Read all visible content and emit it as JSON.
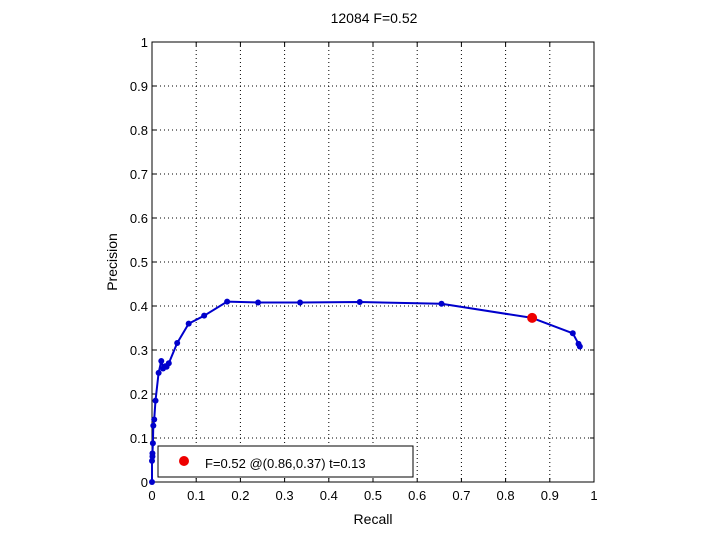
{
  "chart_data": {
    "type": "line",
    "title": "12084 F=0.52",
    "xlabel": "Recall",
    "ylabel": "Precision",
    "xlim": [
      0,
      1
    ],
    "ylim": [
      0,
      1
    ],
    "xticks": [
      "0",
      "0.1",
      "0.2",
      "0.3",
      "0.4",
      "0.5",
      "0.6",
      "0.7",
      "0.8",
      "0.9",
      "1"
    ],
    "yticks": [
      "0",
      "0.1",
      "0.2",
      "0.3",
      "0.4",
      "0.5",
      "0.6",
      "0.7",
      "0.8",
      "0.9",
      "1"
    ],
    "grid": true,
    "legend_position": "bottom-left",
    "series": [
      {
        "color": "#0000cc",
        "marker": "dot",
        "x": [
          0.968,
          0.965,
          0.952,
          0.86,
          0.655,
          0.47,
          0.335,
          0.24,
          0.17,
          0.118,
          0.083,
          0.057,
          0.038,
          0.033,
          0.03,
          0.025,
          0.021,
          0.015,
          0.008,
          0.005,
          0.003,
          0.002,
          0.001,
          0.001,
          0.0,
          0.0
        ],
        "y": [
          0.308,
          0.314,
          0.338,
          0.373,
          0.405,
          0.409,
          0.408,
          0.408,
          0.41,
          0.378,
          0.36,
          0.316,
          0.27,
          0.262,
          0.263,
          0.258,
          0.275,
          0.248,
          0.185,
          0.142,
          0.128,
          0.088,
          0.065,
          0.058,
          0.048,
          0.0
        ]
      }
    ],
    "highlight": {
      "x": 0.86,
      "y": 0.373,
      "color": "#ee0000",
      "label": "F=0.52 @(0.86,0.37) t=0.13"
    }
  }
}
